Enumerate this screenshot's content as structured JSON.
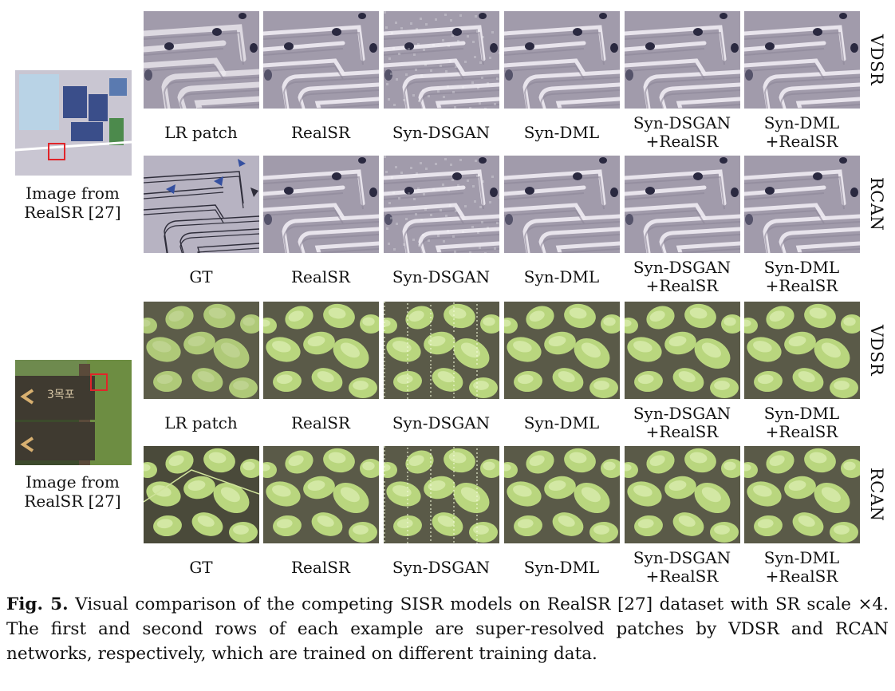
{
  "source_images": [
    {
      "caption_line1": "Image from",
      "caption_line2": "RealSR [27]",
      "kind": "map"
    },
    {
      "caption_line1": "Image from",
      "caption_line2": "RealSR [27]",
      "kind": "signpost"
    }
  ],
  "groups": [
    {
      "kind": "map",
      "rows": [
        {
          "network": "VDSR",
          "labels": [
            [
              "LR patch"
            ],
            [
              "RealSR"
            ],
            [
              "Syn-DSGAN"
            ],
            [
              "Syn-DML"
            ],
            [
              "Syn-DSGAN",
              "+RealSR"
            ],
            [
              "Syn-DML",
              "+RealSR"
            ]
          ]
        },
        {
          "network": "RCAN",
          "labels": [
            [
              "GT"
            ],
            [
              "RealSR"
            ],
            [
              "Syn-DSGAN"
            ],
            [
              "Syn-DML"
            ],
            [
              "Syn-DSGAN",
              "+RealSR"
            ],
            [
              "Syn-DML",
              "+RealSR"
            ]
          ]
        }
      ]
    },
    {
      "kind": "leaf",
      "rows": [
        {
          "network": "VDSR",
          "labels": [
            [
              "LR patch"
            ],
            [
              "RealSR"
            ],
            [
              "Syn-DSGAN"
            ],
            [
              "Syn-DML"
            ],
            [
              "Syn-DSGAN",
              "+RealSR"
            ],
            [
              "Syn-DML",
              "+RealSR"
            ]
          ]
        },
        {
          "network": "RCAN",
          "labels": [
            [
              "GT"
            ],
            [
              "RealSR"
            ],
            [
              "Syn-DSGAN"
            ],
            [
              "Syn-DML"
            ],
            [
              "Syn-DSGAN",
              "+RealSR"
            ],
            [
              "Syn-DML",
              "+RealSR"
            ]
          ]
        }
      ]
    }
  ],
  "caption": {
    "label": "Fig. 5.",
    "text": "Visual comparison of the competing SISR models on RealSR [27] dataset with SR scale ×4. The first and second rows of each example are super-resolved patches by VDSR and RCAN networks, respectively, which are trained on different training data."
  },
  "colors": {
    "map_bg": "#a19bab",
    "map_line": "#ece8ef",
    "map_dot": "#2a2940",
    "gt_bg": "#b7b3c2",
    "gt_line": "#2e2d3a",
    "gt_arrow": "#3550a0",
    "leaf_bg": "#5a5a48",
    "leaf_fill": "#b9d67e",
    "leaf_light": "#dcedb2",
    "highlight_box": "#e0252a"
  }
}
